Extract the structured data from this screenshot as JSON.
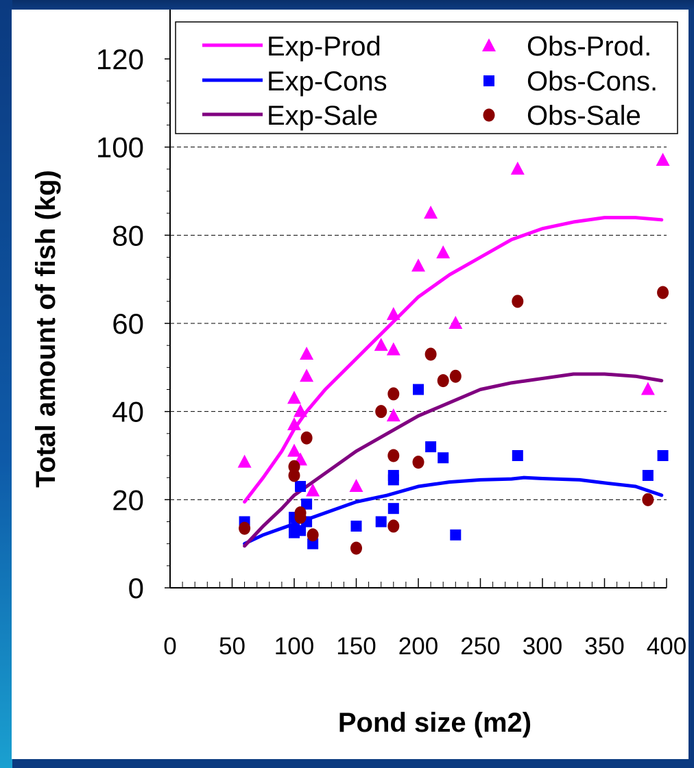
{
  "chart_data": {
    "type": "scatter",
    "xlabel": "Pond size (m2)",
    "ylabel": "Total amount of fish (kg)",
    "xlim": [
      0,
      400
    ],
    "ylim": [
      0,
      120
    ],
    "x_ticks": [
      "0",
      "50",
      "100",
      "150",
      "200",
      "250",
      "300",
      "350",
      "400"
    ],
    "y_ticks": [
      "0",
      "20",
      "40",
      "60",
      "80",
      "100",
      "120"
    ],
    "grid": "horizontal dashed",
    "legend_position": "top",
    "legend": [
      "Exp-Prod",
      "Exp-Cons",
      "Exp-Sale",
      "Obs-Prod.",
      "Obs-Cons.",
      "Obs-Sale"
    ],
    "colors": {
      "prod": "#ff00ff",
      "cons": "#0000ff",
      "sale": "#800080",
      "obs_sale": "#8b0000"
    },
    "series": [
      {
        "name": "Exp-Prod",
        "kind": "line",
        "color": "#ff00ff",
        "x": [
          60,
          75,
          90,
          100,
          110,
          125,
          150,
          175,
          200,
          225,
          250,
          275,
          300,
          325,
          350,
          375,
          396
        ],
        "y": [
          19.5,
          25,
          31,
          36,
          40,
          45,
          52,
          59,
          66,
          71,
          75,
          79,
          81.5,
          83,
          84,
          84,
          83.5
        ]
      },
      {
        "name": "Exp-Cons",
        "kind": "line",
        "color": "#0000ff",
        "x": [
          60,
          75,
          90,
          100,
          125,
          150,
          175,
          200,
          225,
          250,
          275,
          285,
          300,
          330,
          350,
          375,
          396
        ],
        "y": [
          10,
          12,
          13.5,
          14.5,
          17,
          19.5,
          21,
          23,
          24,
          24.5,
          24.7,
          25,
          24.8,
          24.5,
          23.8,
          23,
          21
        ]
      },
      {
        "name": "Exp-Sale",
        "kind": "line",
        "color": "#800080",
        "x": [
          60,
          75,
          90,
          100,
          125,
          150,
          175,
          200,
          225,
          250,
          275,
          300,
          325,
          350,
          375,
          396
        ],
        "y": [
          9.5,
          14,
          18,
          21,
          26,
          31,
          35,
          39,
          42,
          45,
          46.5,
          47.5,
          48.5,
          48.5,
          48,
          47
        ]
      },
      {
        "name": "Obs-Prod.",
        "kind": "scatter",
        "marker": "triangle",
        "color": "#ff00ff",
        "x": [
          60,
          100,
          100,
          100,
          105,
          105,
          110,
          110,
          115,
          150,
          170,
          180,
          180,
          180,
          200,
          210,
          220,
          230,
          280,
          385,
          397
        ],
        "y": [
          28.5,
          43,
          37,
          31,
          40,
          29,
          48,
          53,
          22,
          23,
          55,
          54,
          62,
          39,
          73,
          85,
          76,
          60,
          95,
          45,
          97
        ]
      },
      {
        "name": "Obs-Cons.",
        "kind": "scatter",
        "marker": "square",
        "color": "#0000ff",
        "x": [
          60,
          100,
          100,
          100,
          105,
          105,
          110,
          110,
          115,
          150,
          170,
          180,
          180,
          180,
          200,
          210,
          220,
          230,
          280,
          385,
          397
        ],
        "y": [
          15,
          16,
          12.5,
          13.5,
          23,
          13,
          15,
          19,
          10,
          14,
          15,
          18,
          25.5,
          24.5,
          45,
          32,
          29.5,
          12,
          30,
          25.5,
          30
        ]
      },
      {
        "name": "Obs-Sale",
        "kind": "scatter",
        "marker": "circle",
        "color": "#8b0000",
        "x": [
          60,
          100,
          100,
          105,
          105,
          110,
          115,
          150,
          170,
          180,
          180,
          180,
          200,
          210,
          220,
          230,
          280,
          385,
          397
        ],
        "y": [
          13.5,
          27.5,
          25.5,
          16,
          17,
          34,
          12,
          9,
          40,
          44,
          30,
          14,
          28.5,
          53,
          47,
          48,
          65,
          20,
          67
        ]
      }
    ]
  }
}
